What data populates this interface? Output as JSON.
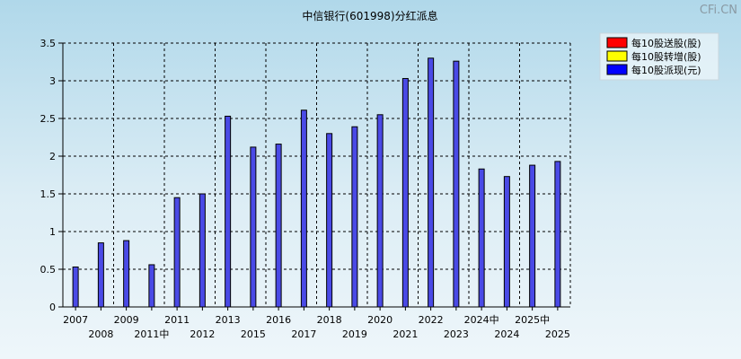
{
  "watermark": "CFi.CN",
  "chart_data": {
    "type": "bar",
    "title": "中信银行(601998)分红派息",
    "categories": [
      "2007",
      "2008",
      "2009",
      "2011中",
      "2011",
      "2012",
      "2013",
      "2015",
      "2016",
      "2017",
      "2018",
      "2019",
      "2020",
      "2021",
      "2022",
      "2023",
      "2024中",
      "2024",
      "2025中",
      "2025"
    ],
    "series": [
      {
        "name": "每10股送股(股)",
        "color": "#ff0000",
        "values": [
          0,
          0,
          0,
          0,
          0,
          0,
          0,
          0,
          0,
          0,
          0,
          0,
          0,
          0,
          0,
          0,
          0,
          0,
          0,
          0
        ]
      },
      {
        "name": "每10股转增(股)",
        "color": "#ffff00",
        "values": [
          0,
          0,
          0,
          0,
          0,
          0,
          0,
          0,
          0,
          0,
          0,
          0,
          0,
          0,
          0,
          0,
          0,
          0,
          0,
          0
        ]
      },
      {
        "name": "每10股派现(元)",
        "color": "#0000ff",
        "values": [
          0.53,
          0.85,
          0.88,
          0.56,
          1.45,
          1.5,
          2.53,
          2.12,
          2.16,
          2.61,
          2.3,
          2.39,
          2.55,
          3.03,
          3.3,
          3.26,
          1.83,
          1.73,
          1.88,
          1.93
        ]
      }
    ],
    "ylim": [
      0,
      3.5
    ],
    "yticks": [
      "0",
      "0.5",
      "1",
      "1.5",
      "2",
      "2.5",
      "3",
      "3.5"
    ],
    "grid": true,
    "legend": "top-right"
  }
}
